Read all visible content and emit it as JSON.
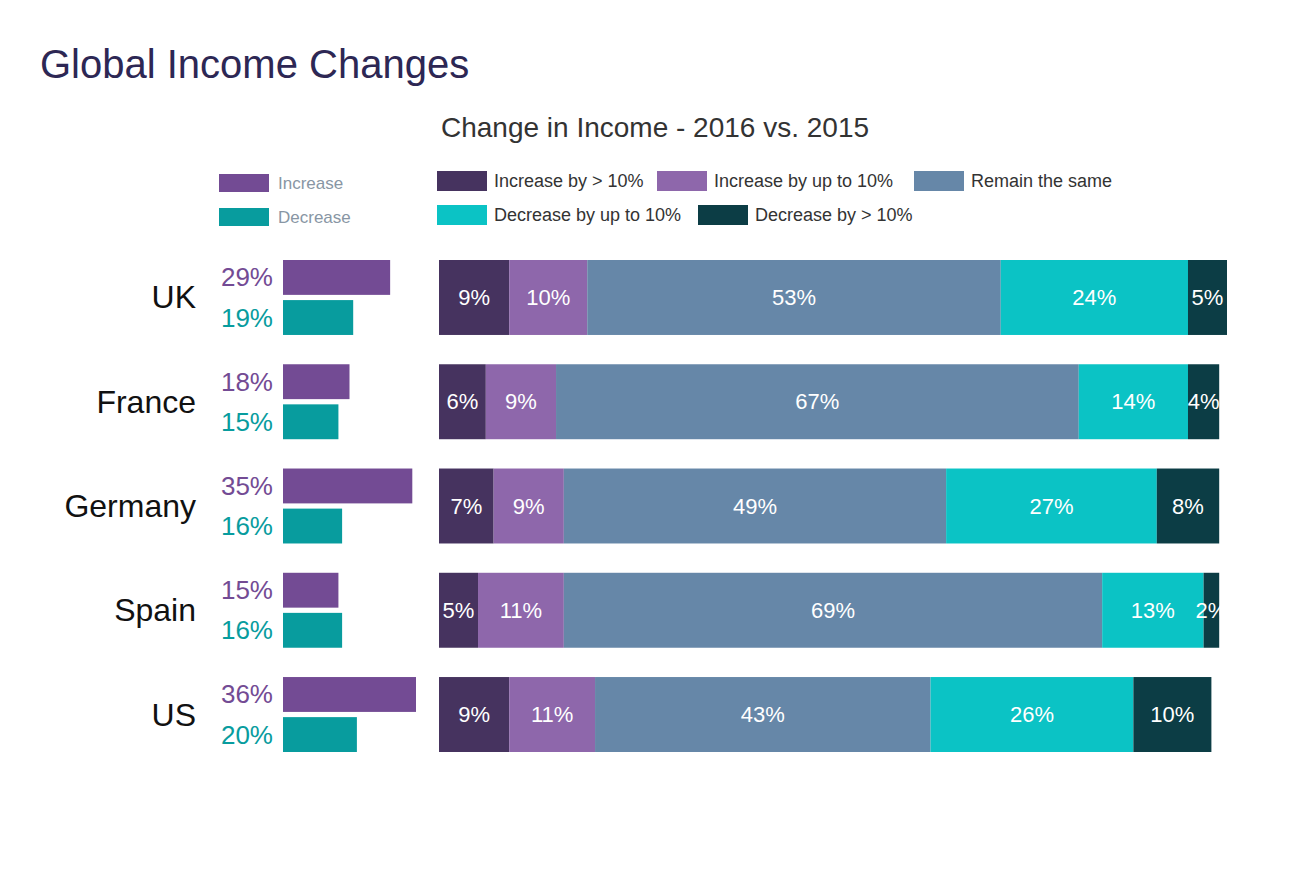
{
  "chart_data": [
    {
      "type": "bar",
      "title": "Global Income Changes",
      "orientation": "horizontal",
      "categories": [
        "UK",
        "France",
        "Germany",
        "Spain",
        "US"
      ],
      "series": [
        {
          "name": "Increase",
          "color": "#734b94",
          "values": [
            29,
            18,
            35,
            15,
            36
          ],
          "value_labels": [
            "29%",
            "18%",
            "35%",
            "15%",
            "36%"
          ]
        },
        {
          "name": "Decrease",
          "color": "#089c9e",
          "values": [
            19,
            15,
            16,
            16,
            20
          ],
          "value_labels": [
            "19%",
            "15%",
            "16%",
            "16%",
            "20%"
          ]
        }
      ],
      "xlim": [
        0,
        36
      ],
      "data_labels": true,
      "tick_labels": "y",
      "legend": "top-left",
      "grid": false
    },
    {
      "type": "bar",
      "title": "Change in Income - 2016 vs. 2015",
      "orientation": "horizontal",
      "stacked": true,
      "categories": [
        "UK",
        "France",
        "Germany",
        "Spain",
        "US"
      ],
      "series": [
        {
          "name": "Increase by > 10%",
          "color": "#46335f",
          "values": [
            9,
            6,
            7,
            5,
            9
          ],
          "value_labels": [
            "9%",
            "6%",
            "7%",
            "5%",
            "9%"
          ]
        },
        {
          "name": "Increase by up to 10%",
          "color": "#8e67ab",
          "values": [
            10,
            9,
            9,
            11,
            11
          ],
          "value_labels": [
            "10%",
            "9%",
            "9%",
            "11%",
            "11%"
          ]
        },
        {
          "name": "Remain the same",
          "color": "#6687a8",
          "values": [
            53,
            67,
            49,
            69,
            43
          ],
          "value_labels": [
            "53%",
            "67%",
            "49%",
            "69%",
            "43%"
          ]
        },
        {
          "name": "Decrease by up to 10%",
          "color": "#0bc3c5",
          "values": [
            24,
            14,
            27,
            13,
            26
          ],
          "value_labels": [
            "24%",
            "14%",
            "27%",
            "13%",
            "26%"
          ]
        },
        {
          "name": "Decrease by > 10%",
          "color": "#0c3d45",
          "values": [
            5,
            4,
            8,
            2,
            10
          ],
          "value_labels": [
            "5%",
            "4%",
            "8%",
            "2%",
            "10%"
          ]
        }
      ],
      "xlim": [
        0,
        101
      ],
      "data_labels": true,
      "tick_labels": false,
      "legend": "top",
      "grid": false
    }
  ]
}
